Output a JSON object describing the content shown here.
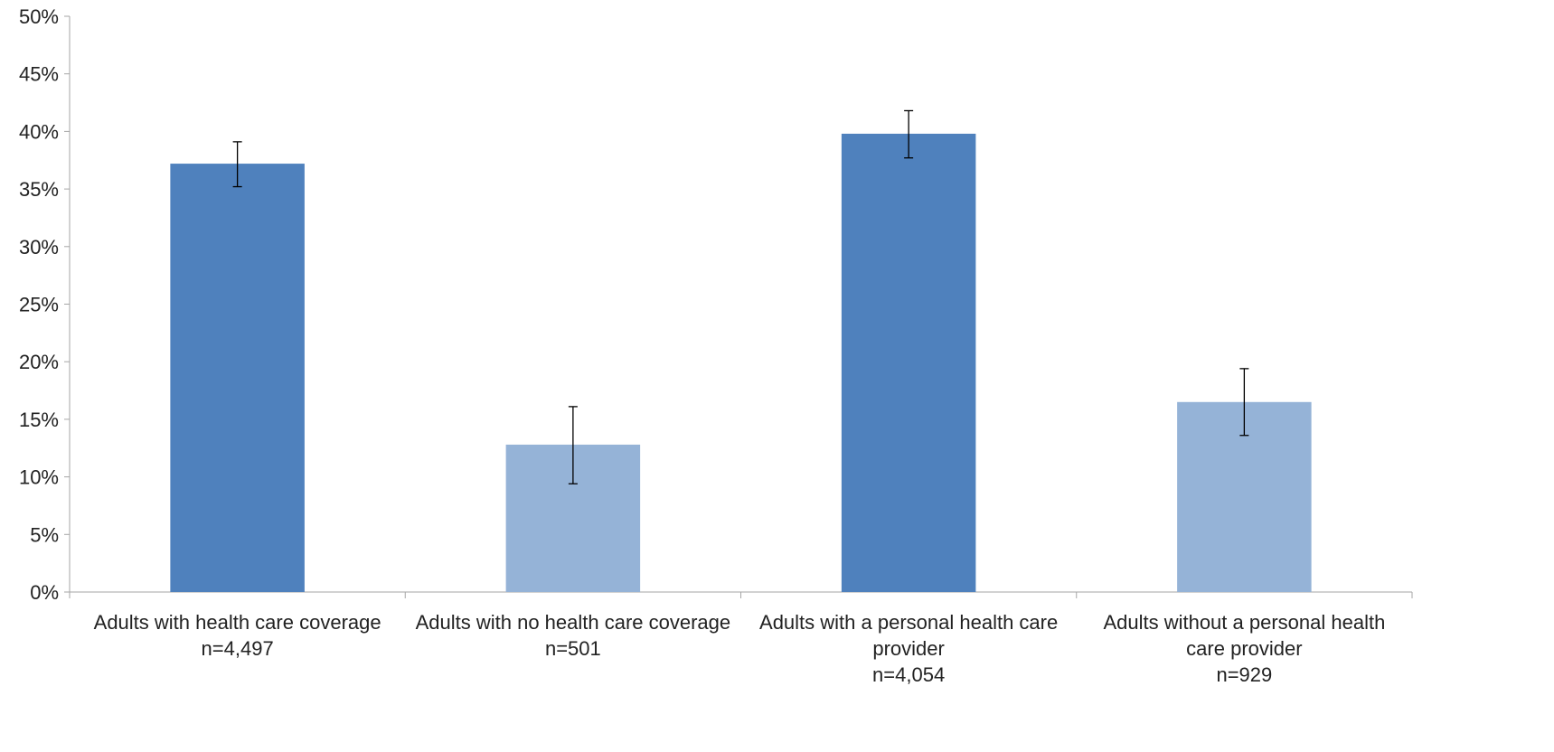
{
  "chart_data": {
    "type": "bar",
    "title": "",
    "xlabel": "",
    "ylabel": "",
    "ylim": [
      0,
      0.5
    ],
    "y_tick_step": 0.05,
    "y_tick_labels": [
      "0%",
      "5%",
      "10%",
      "15%",
      "20%",
      "25%",
      "30%",
      "35%",
      "40%",
      "45%",
      "50%"
    ],
    "grid": false,
    "legend": "none",
    "categories": [
      {
        "label_lines": [
          "Adults with health care coverage",
          "n=4,497"
        ],
        "value": 0.372,
        "error_low": 0.352,
        "error_high": 0.391,
        "color": "#4f81bd"
      },
      {
        "label_lines": [
          "Adults with no health care coverage",
          "n=501"
        ],
        "value": 0.128,
        "error_low": 0.094,
        "error_high": 0.161,
        "color": "#95b3d7"
      },
      {
        "label_lines": [
          "Adults with a personal health care",
          "provider",
          "n=4,054"
        ],
        "value": 0.398,
        "error_low": 0.377,
        "error_high": 0.418,
        "color": "#4f81bd"
      },
      {
        "label_lines": [
          "Adults without a personal health",
          "care provider",
          "n=929"
        ],
        "value": 0.165,
        "error_low": 0.136,
        "error_high": 0.194,
        "color": "#95b3d7"
      }
    ],
    "axis_color": "#a6a6a6",
    "error_bar_color": "#000000"
  }
}
